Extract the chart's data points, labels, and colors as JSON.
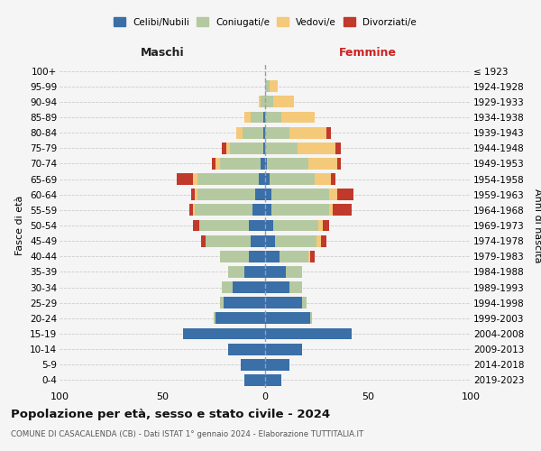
{
  "age_groups": [
    "0-4",
    "5-9",
    "10-14",
    "15-19",
    "20-24",
    "25-29",
    "30-34",
    "35-39",
    "40-44",
    "45-49",
    "50-54",
    "55-59",
    "60-64",
    "65-69",
    "70-74",
    "75-79",
    "80-84",
    "85-89",
    "90-94",
    "95-99",
    "100+"
  ],
  "birth_years": [
    "2019-2023",
    "2014-2018",
    "2009-2013",
    "2004-2008",
    "1999-2003",
    "1994-1998",
    "1989-1993",
    "1984-1988",
    "1979-1983",
    "1974-1978",
    "1969-1973",
    "1964-1968",
    "1959-1963",
    "1954-1958",
    "1949-1953",
    "1944-1948",
    "1939-1943",
    "1934-1938",
    "1929-1933",
    "1924-1928",
    "≤ 1923"
  ],
  "male": {
    "celibi": [
      10,
      12,
      18,
      40,
      24,
      20,
      16,
      10,
      8,
      7,
      8,
      6,
      5,
      3,
      2,
      1,
      1,
      1,
      0,
      0,
      0
    ],
    "coniugati": [
      0,
      0,
      0,
      0,
      1,
      2,
      5,
      8,
      14,
      22,
      24,
      28,
      28,
      30,
      20,
      16,
      10,
      6,
      2,
      0,
      0
    ],
    "vedovi": [
      0,
      0,
      0,
      0,
      0,
      0,
      0,
      0,
      0,
      0,
      0,
      1,
      1,
      2,
      2,
      2,
      3,
      3,
      1,
      0,
      0
    ],
    "divorziati": [
      0,
      0,
      0,
      0,
      0,
      0,
      0,
      0,
      0,
      2,
      3,
      2,
      2,
      8,
      2,
      2,
      0,
      0,
      0,
      0,
      0
    ]
  },
  "female": {
    "nubili": [
      8,
      12,
      18,
      42,
      22,
      18,
      12,
      10,
      7,
      5,
      4,
      3,
      3,
      2,
      1,
      0,
      0,
      0,
      0,
      0,
      0
    ],
    "coniugate": [
      0,
      0,
      0,
      0,
      1,
      2,
      6,
      8,
      14,
      20,
      22,
      28,
      28,
      22,
      20,
      16,
      12,
      8,
      4,
      2,
      0
    ],
    "vedove": [
      0,
      0,
      0,
      0,
      0,
      0,
      0,
      0,
      1,
      2,
      2,
      2,
      4,
      8,
      14,
      18,
      18,
      16,
      10,
      4,
      0
    ],
    "divorziate": [
      0,
      0,
      0,
      0,
      0,
      0,
      0,
      0,
      2,
      3,
      3,
      9,
      8,
      2,
      2,
      3,
      2,
      0,
      0,
      0,
      0
    ]
  },
  "colors": {
    "celibi": "#3a6fa8",
    "coniugati": "#b5c9a0",
    "vedovi": "#f5c97a",
    "divorziati": "#c0392b"
  },
  "xlim": 100,
  "title": "Popolazione per età, sesso e stato civile - 2024",
  "subtitle": "COMUNE DI CASACALENDA (CB) - Dati ISTAT 1° gennaio 2024 - Elaborazione TUTTITALIA.IT",
  "ylabel_left": "Fasce di età",
  "ylabel_right": "Anni di nascita",
  "xlabel_left": "Maschi",
  "xlabel_right": "Femmine",
  "bg_color": "#f5f5f5",
  "grid_color": "#cccccc"
}
